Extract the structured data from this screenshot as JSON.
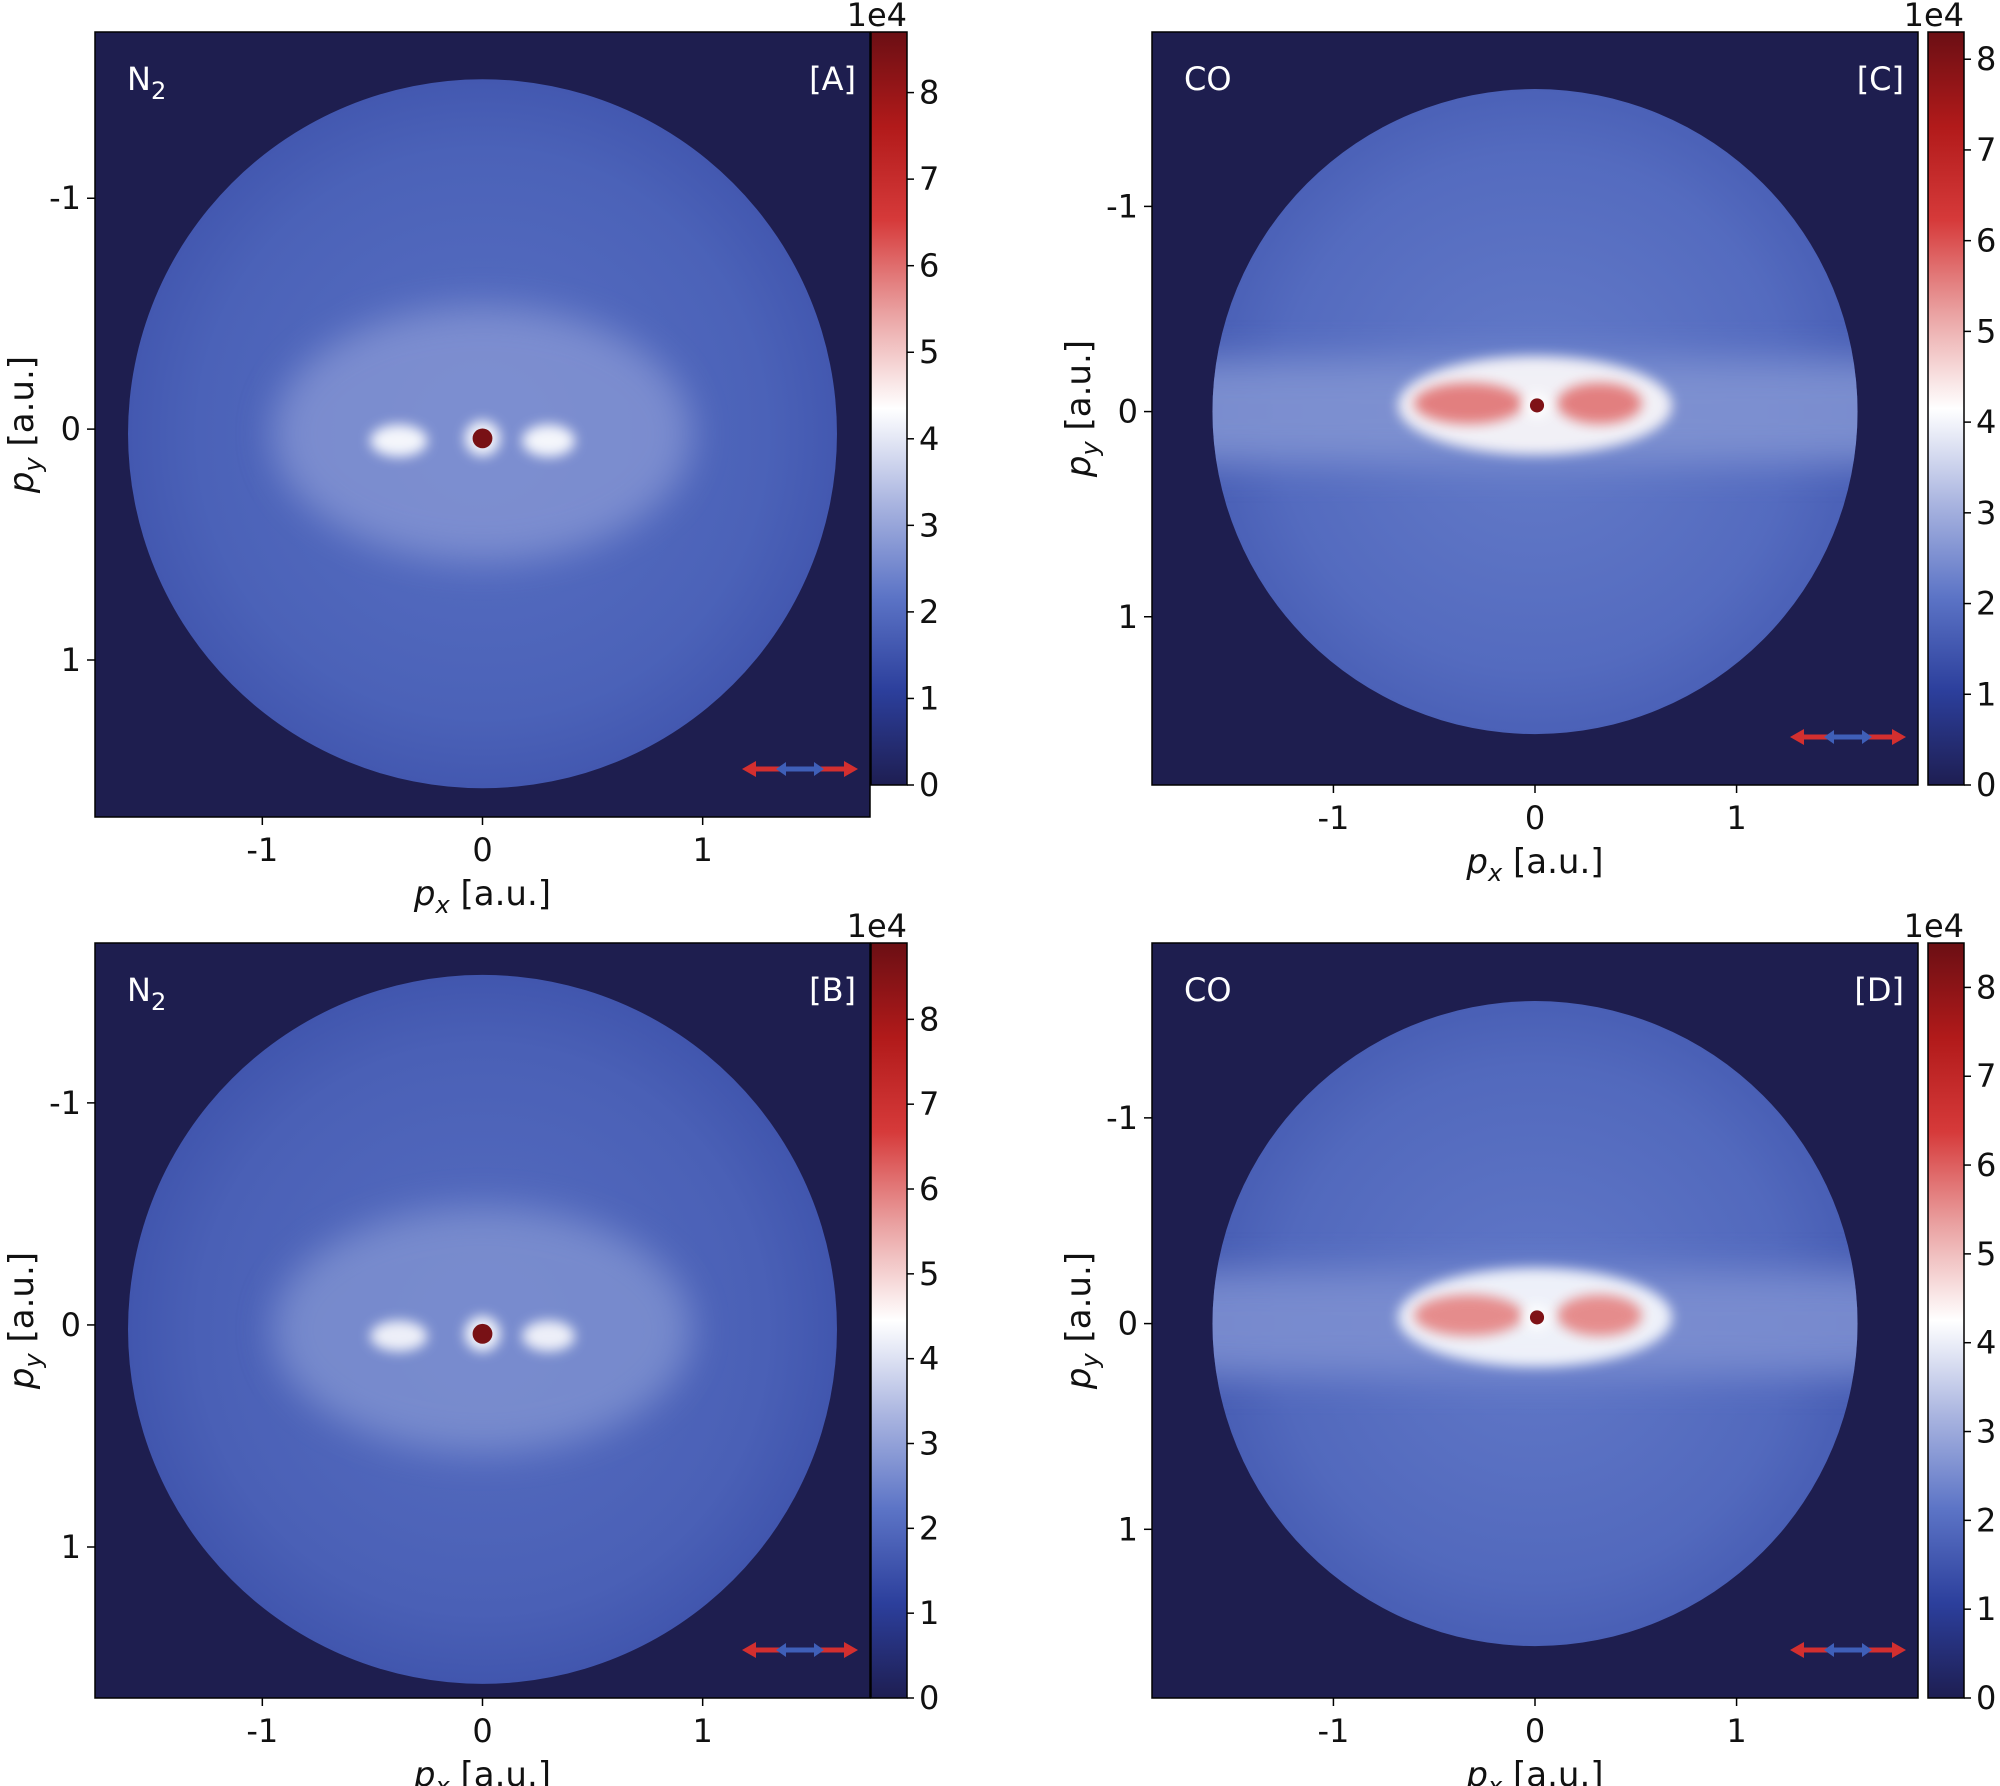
{
  "chart_data": [
    {
      "type": "heatmap",
      "panel_id": "A",
      "molecule_label": "N",
      "molecule_subscript": "2",
      "panel_tag": "[A]",
      "xlabel_base": "p",
      "xlabel_sub": "x",
      "xlabel_unit": " [a.u.]",
      "ylabel_base": "p",
      "ylabel_sub": "y",
      "ylabel_unit": " [a.u.]",
      "xlim": [
        -1.76,
        1.76
      ],
      "ylim": [
        1.68,
        -1.72
      ],
      "y_inverted": true,
      "xticks": [
        -1,
        0,
        1
      ],
      "xtick_labels": [
        "-1",
        "0",
        "1"
      ],
      "yticks": [
        -1,
        0,
        1
      ],
      "ytick_labels": [
        "-1",
        "0",
        "1"
      ],
      "detector_radius": 1.61,
      "detector_center": [
        0,
        0.02
      ],
      "colorbar": {
        "min": 0,
        "max": 8.7,
        "ticks": [
          0,
          1,
          2,
          3,
          4,
          5,
          6,
          7,
          8
        ],
        "tick_labels": [
          "0",
          "1",
          "2",
          "3",
          "4",
          "5",
          "6",
          "7",
          "8"
        ],
        "multiplier": "1e4"
      },
      "features": {
        "background_level": 1.8,
        "outer_ring_level": 1.6,
        "broad_lobe": {
          "cx": 0.0,
          "cy": 0.02,
          "rx": 0.95,
          "ry": 0.55,
          "level": 2.8
        },
        "center_spot": {
          "x": 0.0,
          "y": 0.04,
          "r": 0.045,
          "level": 8.5
        },
        "side_blobs": [
          {
            "x": -0.38,
            "y": 0.05,
            "rx": 0.13,
            "ry": 0.07,
            "level": 4.3
          },
          {
            "x": 0.3,
            "y": 0.05,
            "rx": 0.12,
            "ry": 0.07,
            "level": 4.3
          }
        ]
      }
    },
    {
      "type": "heatmap",
      "panel_id": "C",
      "molecule_label": "CO",
      "molecule_subscript": "",
      "panel_tag": "[C]",
      "xlabel_base": "p",
      "xlabel_sub": "x",
      "xlabel_unit": " [a.u.]",
      "ylabel_base": "p",
      "ylabel_sub": "y",
      "ylabel_unit": " [a.u.]",
      "xlim": [
        -1.9,
        1.9
      ],
      "ylim": [
        1.82,
        -1.85
      ],
      "y_inverted": true,
      "xticks": [
        -1,
        0,
        1
      ],
      "xtick_labels": [
        "-1",
        "0",
        "1"
      ],
      "yticks": [
        -1,
        0,
        1
      ],
      "ytick_labels": [
        "-1",
        "0",
        "1"
      ],
      "detector_radius": 1.6,
      "detector_center": [
        0,
        0.0
      ],
      "colorbar": {
        "min": 0,
        "max": 8.3,
        "ticks": [
          0,
          1,
          2,
          3,
          4,
          5,
          6,
          7,
          8
        ],
        "tick_labels": [
          "0",
          "1",
          "2",
          "3",
          "4",
          "5",
          "6",
          "7",
          "8"
        ],
        "multiplier": "1e4"
      },
      "features": {
        "background_level": 1.9,
        "outer_ring_level": 1.7,
        "horizontal_band": {
          "cy": 0.0,
          "half_height": 0.25,
          "level": 2.6
        },
        "center_spot": {
          "x": 0.01,
          "y": -0.03,
          "r": 0.035,
          "level": 8.0
        },
        "side_blobs": [
          {
            "x": -0.33,
            "y": -0.04,
            "rx": 0.27,
            "ry": 0.1,
            "level": 5.6
          },
          {
            "x": 0.32,
            "y": -0.04,
            "rx": 0.21,
            "ry": 0.1,
            "level": 5.6
          }
        ],
        "halo": {
          "cx": 0.0,
          "cy": -0.03,
          "rx": 0.68,
          "ry": 0.24,
          "level": 4.2
        }
      }
    },
    {
      "type": "heatmap",
      "panel_id": "B",
      "molecule_label": "N",
      "molecule_subscript": "2",
      "panel_tag": "[B]",
      "xlabel_base": "p",
      "xlabel_sub": "x",
      "xlabel_unit": " [a.u.]",
      "ylabel_base": "p",
      "ylabel_sub": "y",
      "ylabel_unit": " [a.u.]",
      "xlim": [
        -1.76,
        1.76
      ],
      "ylim": [
        1.68,
        -1.72
      ],
      "y_inverted": true,
      "xticks": [
        -1,
        0,
        1
      ],
      "xtick_labels": [
        "-1",
        "0",
        "1"
      ],
      "yticks": [
        -1,
        0,
        1
      ],
      "ytick_labels": [
        "-1",
        "0",
        "1"
      ],
      "detector_radius": 1.61,
      "detector_center": [
        0,
        0.02
      ],
      "colorbar": {
        "min": 0,
        "max": 8.9,
        "ticks": [
          0,
          1,
          2,
          3,
          4,
          5,
          6,
          7,
          8
        ],
        "tick_labels": [
          "0",
          "1",
          "2",
          "3",
          "4",
          "5",
          "6",
          "7",
          "8"
        ],
        "multiplier": "1e4"
      },
      "features": {
        "background_level": 1.8,
        "outer_ring_level": 1.6,
        "broad_lobe": {
          "cx": 0.0,
          "cy": 0.02,
          "rx": 0.95,
          "ry": 0.55,
          "level": 2.8
        },
        "center_spot": {
          "x": 0.0,
          "y": 0.04,
          "r": 0.045,
          "level": 8.7
        },
        "side_blobs": [
          {
            "x": -0.38,
            "y": 0.05,
            "rx": 0.13,
            "ry": 0.07,
            "level": 4.3
          },
          {
            "x": 0.3,
            "y": 0.05,
            "rx": 0.12,
            "ry": 0.07,
            "level": 4.3
          }
        ]
      }
    },
    {
      "type": "heatmap",
      "panel_id": "D",
      "molecule_label": "CO",
      "molecule_subscript": "",
      "panel_tag": "[D]",
      "xlabel_base": "p",
      "xlabel_sub": "x",
      "xlabel_unit": " [a.u.]",
      "ylabel_base": "p",
      "ylabel_sub": "y",
      "ylabel_unit": " [a.u.]",
      "xlim": [
        -1.9,
        1.9
      ],
      "ylim": [
        1.82,
        -1.85
      ],
      "y_inverted": true,
      "xticks": [
        -1,
        0,
        1
      ],
      "xtick_labels": [
        "-1",
        "0",
        "1"
      ],
      "yticks": [
        -1,
        0,
        1
      ],
      "ytick_labels": [
        "-1",
        "0",
        "1"
      ],
      "detector_radius": 1.6,
      "detector_center": [
        0,
        0.0
      ],
      "colorbar": {
        "min": 0,
        "max": 8.5,
        "ticks": [
          0,
          1,
          2,
          3,
          4,
          5,
          6,
          7,
          8
        ],
        "tick_labels": [
          "0",
          "1",
          "2",
          "3",
          "4",
          "5",
          "6",
          "7",
          "8"
        ],
        "multiplier": "1e4"
      },
      "features": {
        "background_level": 1.9,
        "outer_ring_level": 1.7,
        "horizontal_band": {
          "cy": 0.0,
          "half_height": 0.25,
          "level": 2.6
        },
        "center_spot": {
          "x": 0.01,
          "y": -0.03,
          "r": 0.035,
          "level": 8.2
        },
        "side_blobs": [
          {
            "x": -0.33,
            "y": -0.04,
            "rx": 0.27,
            "ry": 0.1,
            "level": 5.6
          },
          {
            "x": 0.32,
            "y": -0.04,
            "rx": 0.21,
            "ry": 0.1,
            "level": 5.6
          }
        ],
        "halo": {
          "cx": 0.0,
          "cy": -0.03,
          "rx": 0.68,
          "ry": 0.24,
          "level": 4.2
        }
      }
    }
  ],
  "colors": {
    "background_dark": "#1e1e4f",
    "colormap_stops": [
      "#1e1e52",
      "#2c3f9c",
      "#5c74c6",
      "#aab5e0",
      "#ffffff",
      "#eaa3a3",
      "#d63a3a",
      "#b11a1a",
      "#6b0f14"
    ],
    "polarization_outer": "#d32f2f",
    "polarization_inner": "#3f5fb8"
  },
  "icons": {
    "polarization": "double-headed-arrow-icon"
  }
}
